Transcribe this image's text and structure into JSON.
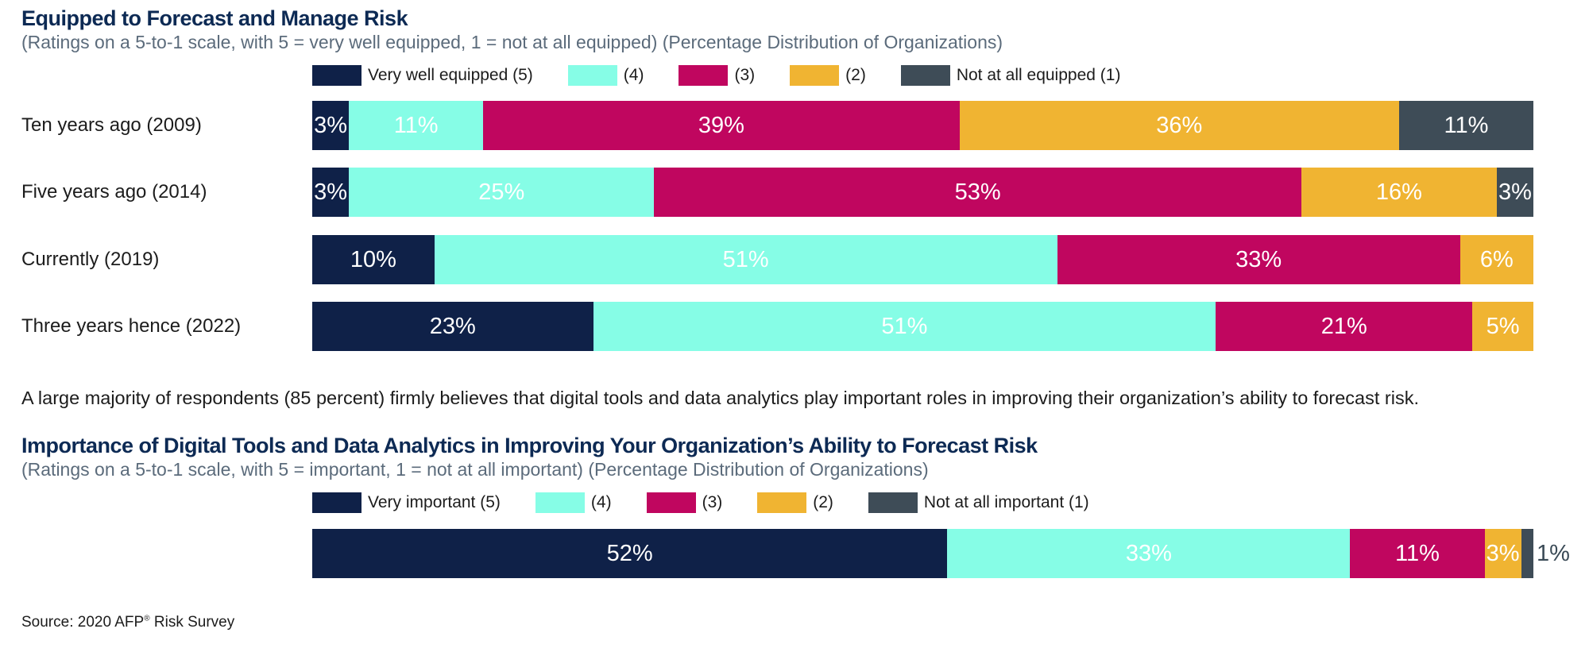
{
  "colors": {
    "c5": "#0f2148",
    "c4": "#86fde6",
    "c3": "#c0065f",
    "c2": "#f0b432",
    "c1": "#3e4c57"
  },
  "chart_data": [
    {
      "type": "bar",
      "orientation": "horizontal-stacked",
      "title": "Equipped to Forecast and Manage Risk",
      "subtitle": "(Ratings on a 5-to-1 scale, with 5 = very well equipped, 1 = not at all equipped) (Percentage Distribution of Organizations)",
      "categories": [
        "Ten years ago (2009)",
        "Five years ago (2014)",
        "Currently (2019)",
        "Three years hence (2022)"
      ],
      "series": [
        {
          "name": "Very well equipped (5)",
          "values": [
            3,
            3,
            10,
            23
          ]
        },
        {
          "name": "(4)",
          "values": [
            11,
            25,
            51,
            51
          ]
        },
        {
          "name": "(3)",
          "values": [
            39,
            53,
            33,
            21
          ]
        },
        {
          "name": "(2)",
          "values": [
            36,
            16,
            6,
            5
          ]
        },
        {
          "name": "Not at all equipped (1)",
          "values": [
            11,
            3,
            0,
            0
          ]
        }
      ],
      "legend_position": "top"
    },
    {
      "type": "bar",
      "orientation": "horizontal-stacked",
      "title": "Importance of Digital Tools and Data Analytics in Improving Your Organization’s Ability to Forecast Risk",
      "subtitle": "(Ratings on a 5-to-1 scale, with 5 = important, 1 = not at all important) (Percentage Distribution of Organizations)",
      "categories": [
        ""
      ],
      "series": [
        {
          "name": "Very important (5)",
          "values": [
            52
          ]
        },
        {
          "name": "(4)",
          "values": [
            33
          ]
        },
        {
          "name": "(3)",
          "values": [
            11
          ]
        },
        {
          "name": "(2)",
          "values": [
            3
          ]
        },
        {
          "name": "Not at all important (1)",
          "values": [
            1
          ]
        }
      ],
      "legend_position": "top"
    }
  ],
  "body_text": "A large majority of respondents (85 percent) firmly believes that digital tools and data analytics play important roles in improving their organization’s ability to forecast risk.",
  "source": {
    "prefix": "Source: 2020 AFP",
    "mark": "®",
    "suffix": " Risk Survey"
  }
}
